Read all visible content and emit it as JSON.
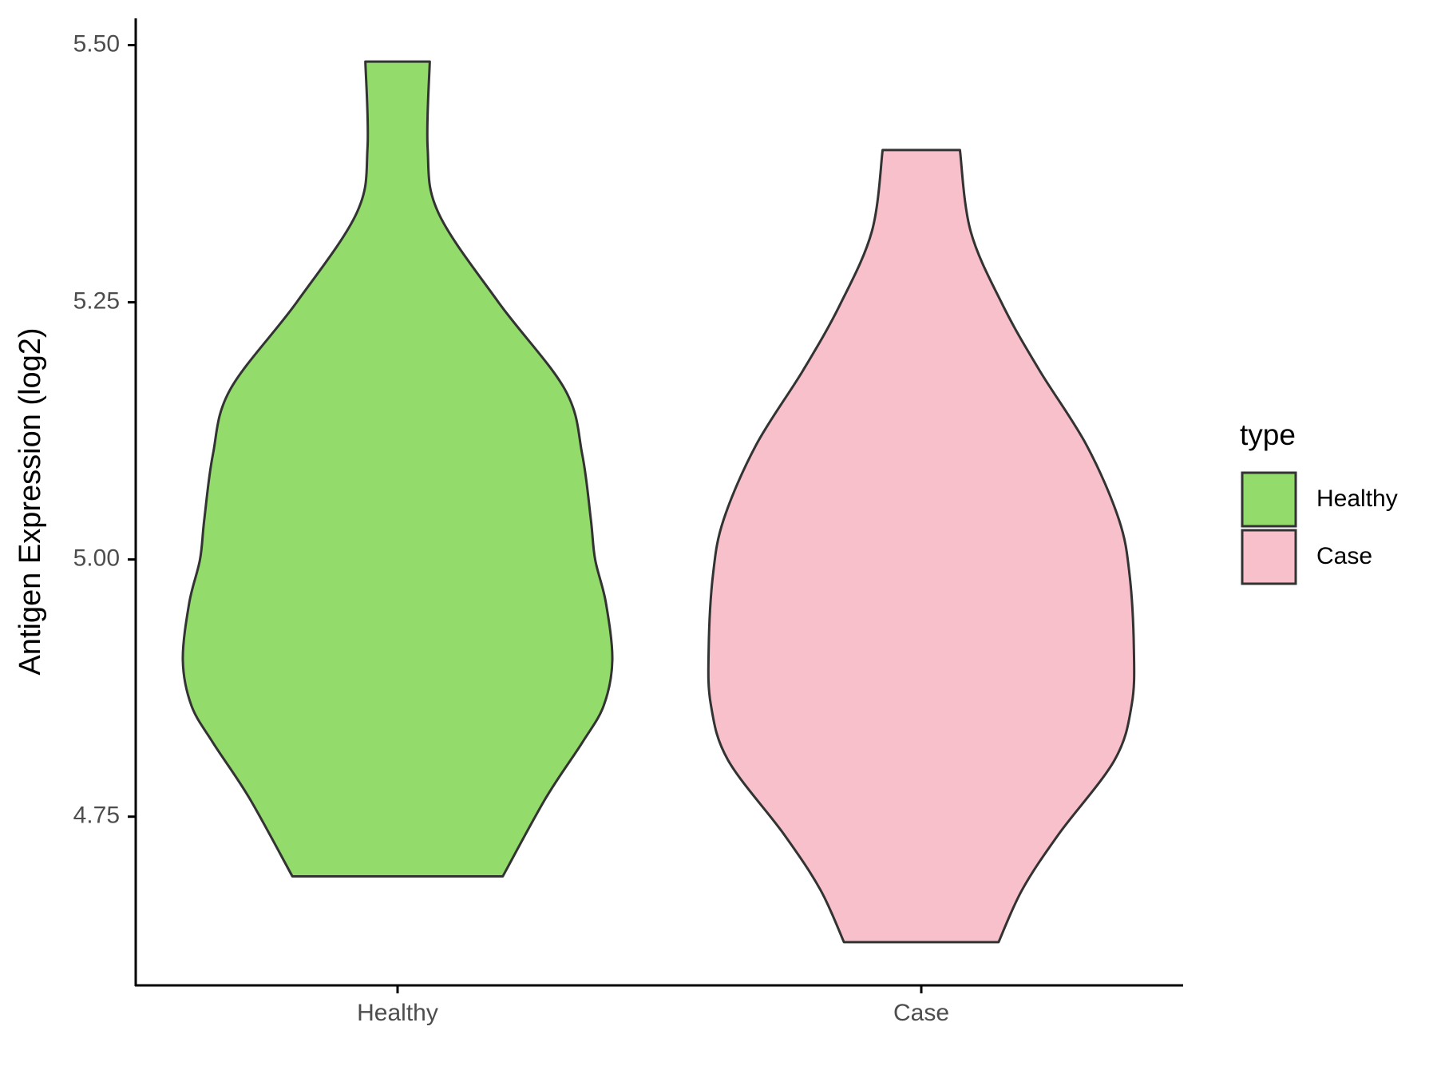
{
  "chart_data": {
    "type": "violin",
    "y_label": "Antigen Expression (log2)",
    "categories": [
      "Healthy",
      "Case"
    ],
    "legend_title": "type",
    "legend_position": "right",
    "outline_color": "#333333",
    "series": [
      {
        "name": "Healthy",
        "color": "#93DB6B",
        "y": [
          5.484,
          5.4,
          5.337,
          5.25,
          5.165,
          5.102,
          5.039,
          5.0,
          4.958,
          4.902,
          4.858,
          4.822,
          4.768,
          4.692
        ],
        "density": [
          0.15,
          0.14,
          0.19,
          0.47,
          0.78,
          0.86,
          0.9,
          0.92,
          0.97,
          1.0,
          0.96,
          0.86,
          0.69,
          0.49
        ]
      },
      {
        "name": "Case",
        "color": "#F7C0CB",
        "y": [
          5.398,
          5.319,
          5.247,
          5.184,
          5.111,
          5.039,
          4.985,
          4.913,
          4.859,
          4.805,
          4.733,
          4.679,
          4.628
        ],
        "density": [
          0.18,
          0.23,
          0.38,
          0.55,
          0.77,
          0.92,
          0.97,
          0.99,
          0.98,
          0.9,
          0.64,
          0.47,
          0.36
        ]
      }
    ],
    "ylim": [
      4.586,
      5.526
    ],
    "yticks": [
      4.75,
      {
        "value": 5,
        "label": "5.00"
      },
      5.25,
      {
        "value": 5.5,
        "label": "5.50"
      }
    ],
    "grid": false
  }
}
